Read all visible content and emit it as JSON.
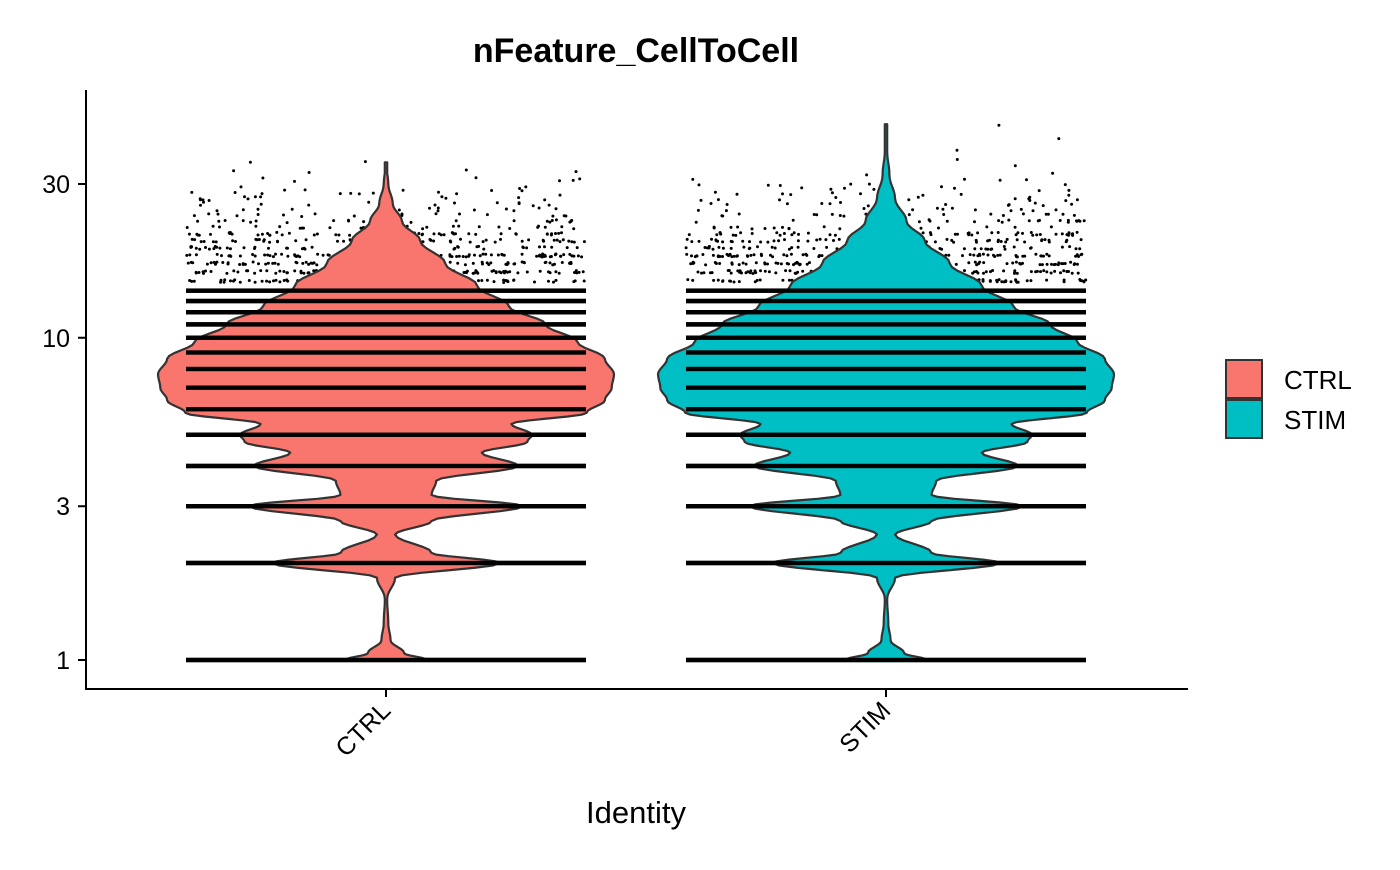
{
  "chart_data": {
    "type": "violin",
    "title": "nFeature_CellToCell",
    "xlabel": "Identity",
    "ylabel": "",
    "y_scale": "log",
    "ylim": [
      0.9,
      55
    ],
    "y_ticks": [
      1,
      3,
      10,
      30
    ],
    "y_tick_labels": [
      "1",
      "3",
      "10",
      "30"
    ],
    "categories": [
      "CTRL",
      "STIM"
    ],
    "x_tick_rotation_deg": 45,
    "grid": false,
    "legend": {
      "position": "right",
      "entries": [
        {
          "label": "CTRL",
          "color": "#F8766D"
        },
        {
          "label": "STIM",
          "color": "#00BFC4"
        }
      ]
    },
    "series": [
      {
        "category": "CTRL",
        "color": "#F8766D",
        "max_value": 35,
        "density": [
          {
            "y": 1.0,
            "w": 0.18
          },
          {
            "y": 1.05,
            "w": 0.08
          },
          {
            "y": 1.15,
            "w": 0.02
          },
          {
            "y": 1.3,
            "w": 0.01
          },
          {
            "y": 1.55,
            "w": 0.005
          },
          {
            "y": 1.8,
            "w": 0.04
          },
          {
            "y": 2.0,
            "w": 0.5
          },
          {
            "y": 2.15,
            "w": 0.2
          },
          {
            "y": 2.45,
            "w": 0.04
          },
          {
            "y": 2.7,
            "w": 0.2
          },
          {
            "y": 3.0,
            "w": 0.6
          },
          {
            "y": 3.25,
            "w": 0.2
          },
          {
            "y": 3.6,
            "w": 0.22
          },
          {
            "y": 4.0,
            "w": 0.58
          },
          {
            "y": 4.4,
            "w": 0.42
          },
          {
            "y": 4.75,
            "w": 0.62
          },
          {
            "y": 5.0,
            "w": 0.64
          },
          {
            "y": 5.4,
            "w": 0.55
          },
          {
            "y": 5.85,
            "w": 0.88
          },
          {
            "y": 6.4,
            "w": 0.96
          },
          {
            "y": 7.0,
            "w": 0.99
          },
          {
            "y": 7.7,
            "w": 1.0
          },
          {
            "y": 8.6,
            "w": 0.96
          },
          {
            "y": 9.7,
            "w": 0.84
          },
          {
            "y": 11.0,
            "w": 0.7
          },
          {
            "y": 12.5,
            "w": 0.54
          },
          {
            "y": 14.5,
            "w": 0.4
          },
          {
            "y": 17.0,
            "w": 0.26
          },
          {
            "y": 20.0,
            "w": 0.15
          },
          {
            "y": 23.0,
            "w": 0.07
          },
          {
            "y": 26.0,
            "w": 0.03
          },
          {
            "y": 30.0,
            "w": 0.01
          },
          {
            "y": 35.0,
            "w": 0.0
          }
        ]
      },
      {
        "category": "STIM",
        "color": "#00BFC4",
        "max_value": 46,
        "density": [
          {
            "y": 1.0,
            "w": 0.18
          },
          {
            "y": 1.05,
            "w": 0.08
          },
          {
            "y": 1.15,
            "w": 0.02
          },
          {
            "y": 1.3,
            "w": 0.01
          },
          {
            "y": 1.55,
            "w": 0.005
          },
          {
            "y": 1.8,
            "w": 0.04
          },
          {
            "y": 2.0,
            "w": 0.5
          },
          {
            "y": 2.15,
            "w": 0.2
          },
          {
            "y": 2.45,
            "w": 0.04
          },
          {
            "y": 2.7,
            "w": 0.2
          },
          {
            "y": 3.0,
            "w": 0.6
          },
          {
            "y": 3.25,
            "w": 0.2
          },
          {
            "y": 3.6,
            "w": 0.22
          },
          {
            "y": 4.0,
            "w": 0.58
          },
          {
            "y": 4.4,
            "w": 0.42
          },
          {
            "y": 4.75,
            "w": 0.62
          },
          {
            "y": 5.0,
            "w": 0.64
          },
          {
            "y": 5.4,
            "w": 0.55
          },
          {
            "y": 5.85,
            "w": 0.88
          },
          {
            "y": 6.4,
            "w": 0.96
          },
          {
            "y": 7.0,
            "w": 0.99
          },
          {
            "y": 7.7,
            "w": 1.0
          },
          {
            "y": 8.6,
            "w": 0.96
          },
          {
            "y": 9.7,
            "w": 0.84
          },
          {
            "y": 11.0,
            "w": 0.72
          },
          {
            "y": 12.5,
            "w": 0.56
          },
          {
            "y": 14.5,
            "w": 0.42
          },
          {
            "y": 17.0,
            "w": 0.28
          },
          {
            "y": 20.0,
            "w": 0.17
          },
          {
            "y": 23.0,
            "w": 0.09
          },
          {
            "y": 27.0,
            "w": 0.04
          },
          {
            "y": 32.0,
            "w": 0.015
          },
          {
            "y": 38.0,
            "w": 0.005
          },
          {
            "y": 46.0,
            "w": 0.0
          }
        ]
      }
    ],
    "points": {
      "color": "#000000",
      "integer_levels": [
        1,
        2,
        3,
        4,
        5,
        6,
        7,
        8,
        9,
        10,
        11,
        12,
        13,
        14,
        15,
        16,
        17,
        18,
        19,
        20,
        21,
        22,
        23,
        24,
        25
      ],
      "sparse_above_CTRL": [
        26,
        27,
        28,
        29,
        31,
        33,
        35
      ],
      "sparse_above_STIM": [
        26,
        27,
        28,
        29,
        30,
        31,
        32,
        34,
        36,
        38,
        41,
        46
      ]
    }
  }
}
